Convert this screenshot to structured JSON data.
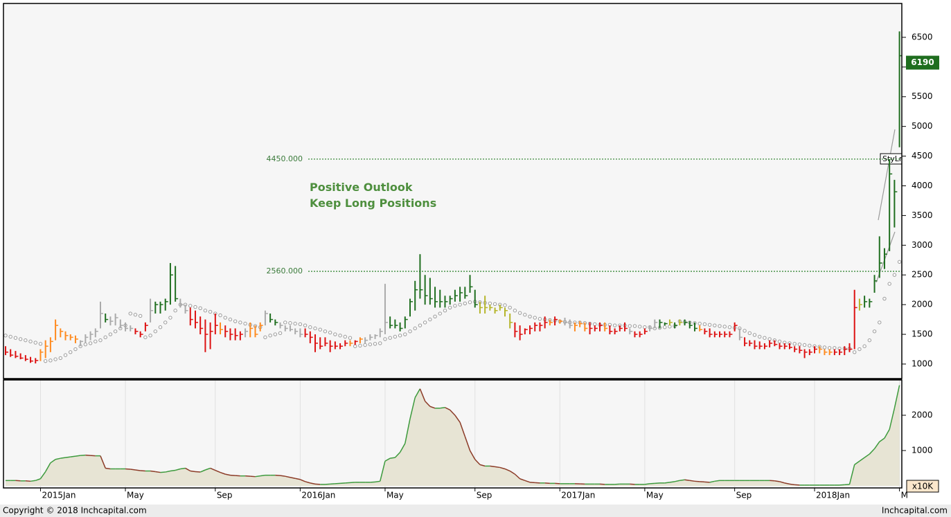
{
  "chart_data": [
    {
      "type": "ohlc",
      "high": [
        1300,
        1250,
        1220,
        1180,
        1150,
        1120,
        1100,
        1250,
        1400,
        1450,
        1750,
        1600,
        1550,
        1500,
        1480,
        1400,
        1500,
        1550,
        1600,
        2050,
        1850,
        1800,
        1850,
        1750,
        1700,
        1650,
        1600,
        1550,
        1700,
        2100,
        2050,
        2050,
        2100,
        2700,
        2650,
        2100,
        2000,
        1950,
        1900,
        1800,
        1750,
        1700,
        1850,
        1700,
        1650,
        1600,
        1600,
        1550,
        1600,
        1700,
        1650,
        1700,
        1900,
        1850,
        1750,
        1700,
        1650,
        1650,
        1600,
        1600,
        1600,
        1550,
        1500,
        1450,
        1450,
        1400,
        1380,
        1350,
        1400,
        1400,
        1400,
        1450,
        1450,
        1500,
        1500,
        1600,
        2350,
        1800,
        1750,
        1700,
        1800,
        2100,
        2400,
        2850,
        2500,
        2450,
        2300,
        2250,
        2150,
        2150,
        2250,
        2300,
        2300,
        2500,
        2250,
        2050,
        2150,
        2000,
        1950,
        2000,
        1950,
        1850,
        1700,
        1650,
        1600,
        1650,
        1700,
        1700,
        1800,
        1750,
        1800,
        1750,
        1780,
        1750,
        1700,
        1720,
        1700,
        1700,
        1650,
        1700,
        1700,
        1650,
        1600,
        1650,
        1700,
        1600,
        1550,
        1550,
        1600,
        1650,
        1750,
        1750,
        1700,
        1750,
        1700,
        1750,
        1750,
        1720,
        1700,
        1650,
        1600,
        1600,
        1550,
        1550,
        1550,
        1550,
        1700,
        1600,
        1450,
        1400,
        1400,
        1380,
        1350,
        1400,
        1400,
        1350,
        1350,
        1350,
        1300,
        1300,
        1250,
        1250,
        1300,
        1300,
        1250,
        1250,
        1250,
        1250,
        1300,
        1350,
        2250,
        2100,
        2150,
        2100,
        2500,
        3150,
        2950,
        4450,
        4100,
        6600
      ],
      "low": [
        1150,
        1120,
        1100,
        1080,
        1050,
        1020,
        1010,
        1050,
        1100,
        1200,
        1400,
        1450,
        1400,
        1400,
        1350,
        1300,
        1350,
        1400,
        1450,
        1600,
        1700,
        1650,
        1650,
        1600,
        1550,
        1550,
        1500,
        1450,
        1550,
        1700,
        1850,
        1850,
        1900,
        2000,
        2050,
        1950,
        1850,
        1650,
        1600,
        1500,
        1200,
        1250,
        1500,
        1500,
        1450,
        1400,
        1400,
        1400,
        1450,
        1450,
        1450,
        1550,
        1650,
        1700,
        1650,
        1600,
        1550,
        1550,
        1500,
        1450,
        1450,
        1350,
        1200,
        1250,
        1300,
        1200,
        1250,
        1250,
        1300,
        1300,
        1320,
        1350,
        1350,
        1400,
        1420,
        1450,
        1500,
        1600,
        1600,
        1550,
        1600,
        1800,
        1900,
        2100,
        2000,
        2000,
        1950,
        1950,
        1950,
        2000,
        2050,
        2050,
        2100,
        2200,
        1950,
        1850,
        1850,
        1900,
        1850,
        1900,
        1800,
        1600,
        1450,
        1400,
        1500,
        1500,
        1550,
        1550,
        1600,
        1650,
        1650,
        1680,
        1650,
        1600,
        1550,
        1620,
        1550,
        1500,
        1550,
        1550,
        1550,
        1500,
        1500,
        1550,
        1550,
        1500,
        1450,
        1450,
        1500,
        1550,
        1600,
        1600,
        1650,
        1650,
        1600,
        1650,
        1650,
        1600,
        1550,
        1550,
        1500,
        1450,
        1450,
        1450,
        1450,
        1450,
        1550,
        1400,
        1300,
        1300,
        1250,
        1250,
        1250,
        1280,
        1300,
        1250,
        1250,
        1250,
        1200,
        1180,
        1100,
        1150,
        1180,
        1180,
        1150,
        1150,
        1150,
        1150,
        1150,
        1200,
        1250,
        1900,
        1950,
        1950,
        2200,
        2450,
        2600,
        2900,
        3300,
        4650
      ],
      "close": [
        1200,
        1150,
        1130,
        1100,
        1080,
        1050,
        1060,
        1200,
        1300,
        1380,
        1650,
        1550,
        1480,
        1450,
        1420,
        1380,
        1450,
        1500,
        1550,
        1850,
        1750,
        1720,
        1780,
        1650,
        1600,
        1600,
        1550,
        1500,
        1650,
        1900,
        2000,
        2000,
        2050,
        2500,
        2100,
        2000,
        1900,
        1750,
        1700,
        1600,
        1500,
        1550,
        1650,
        1580,
        1550,
        1500,
        1480,
        1500,
        1550,
        1600,
        1500,
        1650,
        1850,
        1750,
        1700,
        1650,
        1600,
        1580,
        1550,
        1500,
        1500,
        1450,
        1350,
        1300,
        1350,
        1300,
        1300,
        1300,
        1350,
        1350,
        1380,
        1420,
        1400,
        1450,
        1480,
        1550,
        1700,
        1650,
        1650,
        1600,
        1750,
        2050,
        2250,
        2250,
        2150,
        2100,
        2050,
        2050,
        2050,
        2100,
        2150,
        2200,
        2150,
        2300,
        2000,
        1950,
        1950,
        1950,
        1900,
        1950,
        1900,
        1700,
        1550,
        1500,
        1580,
        1600,
        1650,
        1650,
        1700,
        1700,
        1750,
        1720,
        1700,
        1650,
        1650,
        1680,
        1600,
        1600,
        1600,
        1650,
        1600,
        1550,
        1550,
        1600,
        1600,
        1550,
        1500,
        1500,
        1550,
        1600,
        1700,
        1700,
        1680,
        1700,
        1650,
        1700,
        1700,
        1650,
        1600,
        1580,
        1550,
        1500,
        1500,
        1500,
        1500,
        1500,
        1650,
        1450,
        1350,
        1350,
        1300,
        1300,
        1300,
        1350,
        1330,
        1300,
        1300,
        1280,
        1250,
        1230,
        1200,
        1200,
        1250,
        1250,
        1200,
        1200,
        1200,
        1200,
        1250,
        1250,
        1950,
        2000,
        2050,
        2050,
        2400,
        2700,
        2850,
        4200,
        3900,
        6190
      ],
      "bar_color_keys": "rrrrrrroooooooogggggGgggggrrrgGGGGGggrrrrrrorrrrgooogGGgggggrrrrrrrrrorogggggGGGGGGGGGGGGGGGGGGyyyyyyyrrrrrrroroggooorrrorrrrgrrrggGGyGyGGGorrrrrrrgrrrrrrrrrrrrrrrooorrrrryGGGGGGGGG",
      "palette": {
        "r": "#dd1111",
        "o": "#ff8a1e",
        "g": "#aaaaaa",
        "G": "#1f6e1f",
        "y": "#b5b52a"
      },
      "sar": [
        1480,
        1460,
        1440,
        1420,
        1400,
        1380,
        1360,
        1340,
        1050,
        1060,
        1080,
        1100,
        1150,
        1200,
        1250,
        1300,
        1330,
        1350,
        1380,
        1400,
        1450,
        1500,
        1550,
        1600,
        1650,
        1850,
        1830,
        1810,
        1450,
        1480,
        1550,
        1620,
        1700,
        1780,
        1900,
        2000,
        2000,
        1980,
        1960,
        1940,
        1900,
        1880,
        1850,
        1820,
        1780,
        1750,
        1720,
        1700,
        1680,
        1660,
        1640,
        1620,
        1450,
        1480,
        1500,
        1520,
        1700,
        1690,
        1680,
        1670,
        1650,
        1620,
        1600,
        1580,
        1550,
        1530,
        1500,
        1480,
        1460,
        1440,
        1300,
        1310,
        1320,
        1330,
        1340,
        1350,
        1420,
        1440,
        1460,
        1480,
        1500,
        1550,
        1600,
        1650,
        1700,
        1750,
        1800,
        1850,
        1900,
        1950,
        1980,
        2000,
        2020,
        2040,
        2050,
        2040,
        2030,
        2020,
        2010,
        2000,
        1990,
        1950,
        1900,
        1860,
        1830,
        1800,
        1780,
        1760,
        1750,
        1740,
        1730,
        1720,
        1710,
        1700,
        1700,
        1700,
        1690,
        1680,
        1670,
        1660,
        1660,
        1660,
        1650,
        1650,
        1650,
        1640,
        1640,
        1630,
        1620,
        1620,
        1600,
        1610,
        1620,
        1630,
        1640,
        1720,
        1710,
        1700,
        1690,
        1680,
        1670,
        1660,
        1650,
        1640,
        1630,
        1620,
        1610,
        1600,
        1560,
        1520,
        1490,
        1460,
        1440,
        1420,
        1400,
        1380,
        1360,
        1350,
        1340,
        1330,
        1320,
        1310,
        1300,
        1290,
        1280,
        1270,
        1270,
        1260,
        1260,
        1260,
        1200,
        1250,
        1300,
        1400,
        1550,
        1700,
        2100,
        2350,
        2500,
        2720
      ],
      "sar_color": "#9a9a9a",
      "levels": [
        {
          "value": 4450,
          "label": "4450.000"
        },
        {
          "value": 2560,
          "label": "2560.000"
        }
      ],
      "level_color": "#3a8a3a",
      "annotations": [
        "Positive Outlook",
        "Keep Long Positions"
      ],
      "trendline_label": "StyLn",
      "last_value": 6190,
      "last_color": "#1f6e1f",
      "ylim": [
        755,
        7070
      ],
      "yticks": [
        1000,
        1500,
        2000,
        2500,
        3000,
        3500,
        4000,
        4500,
        5000,
        5500,
        6000,
        6500
      ]
    },
    {
      "type": "area",
      "categories": [
        null,
        null,
        null,
        null,
        null,
        null,
        null,
        "2015Jan",
        null,
        null,
        null,
        null,
        null,
        null,
        null,
        null,
        null,
        null,
        null,
        null,
        null,
        null,
        null,
        null,
        "May",
        null,
        null,
        null,
        null,
        null,
        null,
        null,
        null,
        null,
        null,
        null,
        null,
        null,
        null,
        null,
        null,
        null,
        "Sep",
        null,
        null,
        null,
        null,
        null,
        null,
        null,
        null,
        null,
        null,
        null,
        null,
        null,
        null,
        null,
        null,
        "2016Jan",
        null,
        null,
        null,
        null,
        null,
        null,
        null,
        null,
        null,
        null,
        null,
        null,
        null,
        null,
        null,
        null,
        "May",
        null,
        null,
        null,
        null,
        null,
        null,
        null,
        null,
        null,
        null,
        null,
        null,
        null,
        null,
        null,
        null,
        null,
        "Sep",
        null,
        null,
        null,
        null,
        null,
        null,
        null,
        null,
        null,
        null,
        null,
        null,
        null,
        null,
        null,
        null,
        "2017Jan",
        null,
        null,
        null,
        null,
        null,
        null,
        null,
        null,
        null,
        null,
        null,
        null,
        null,
        null,
        null,
        null,
        "May",
        null,
        null,
        null,
        null,
        null,
        null,
        null,
        null,
        null,
        null,
        null,
        null,
        null,
        null,
        null,
        null,
        null,
        "Sep",
        null,
        null,
        null,
        null,
        null,
        null,
        null,
        null,
        null,
        null,
        null,
        null,
        null,
        null,
        null,
        "2018Jan",
        null,
        null,
        null,
        null,
        null,
        null,
        null,
        null,
        null,
        null,
        null,
        null,
        null,
        null,
        null,
        null,
        "M"
      ],
      "values": [
        150,
        150,
        150,
        140,
        140,
        130,
        150,
        200,
        400,
        650,
        750,
        780,
        800,
        820,
        840,
        860,
        870,
        860,
        850,
        850,
        500,
        480,
        480,
        480,
        480,
        470,
        450,
        430,
        420,
        420,
        400,
        380,
        390,
        420,
        440,
        480,
        500,
        420,
        400,
        390,
        450,
        500,
        440,
        380,
        330,
        300,
        290,
        280,
        280,
        270,
        260,
        280,
        300,
        300,
        300,
        290,
        270,
        240,
        210,
        180,
        120,
        80,
        50,
        40,
        40,
        50,
        60,
        70,
        80,
        90,
        100,
        100,
        100,
        100,
        110,
        130,
        700,
        780,
        800,
        950,
        1200,
        1900,
        2500,
        2750,
        2400,
        2250,
        2200,
        2200,
        2220,
        2150,
        2000,
        1800,
        1400,
        1000,
        750,
        600,
        560,
        560,
        540,
        520,
        480,
        420,
        330,
        200,
        150,
        100,
        90,
        80,
        80,
        70,
        70,
        60,
        60,
        60,
        60,
        55,
        50,
        50,
        50,
        50,
        40,
        40,
        40,
        50,
        50,
        50,
        40,
        40,
        40,
        60,
        70,
        80,
        80,
        100,
        120,
        150,
        170,
        150,
        130,
        120,
        110,
        100,
        130,
        150,
        150,
        150,
        150,
        150,
        150,
        150,
        150,
        150,
        150,
        150,
        140,
        120,
        80,
        50,
        30,
        20,
        20,
        20,
        20,
        20,
        20,
        20,
        20,
        20,
        30,
        40,
        600,
        700,
        800,
        900,
        1050,
        1250,
        1350,
        1600,
        2200,
        2850
      ],
      "up_color": "#3c9a3c",
      "down_color": "#8b3a26",
      "fill": "#e7e4d4",
      "unit_label": "x10K",
      "ylim": [
        -60,
        3000
      ],
      "yticks": [
        1000,
        2000
      ]
    }
  ],
  "footer": {
    "left": "Copyright © 2018 Inchcapital.com",
    "right": "Inchcapital.com"
  }
}
